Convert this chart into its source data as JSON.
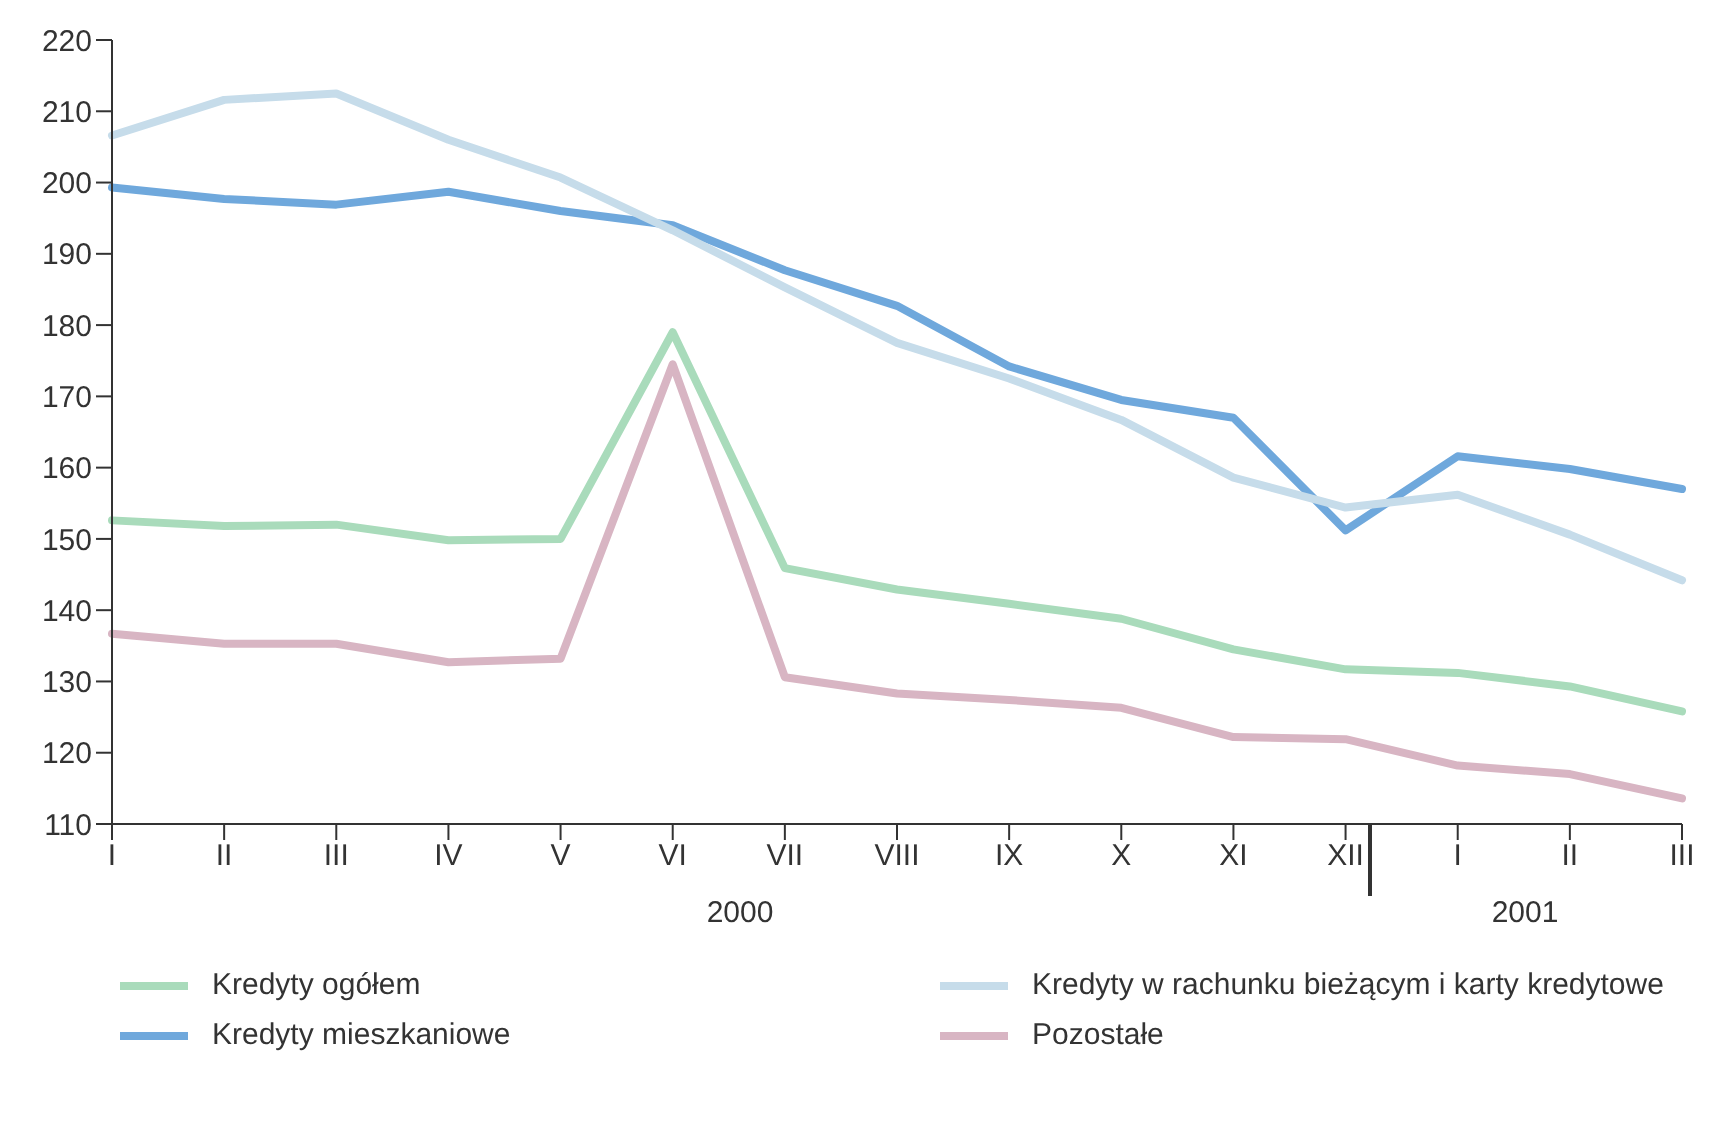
{
  "chart_data": {
    "type": "line",
    "categories": [
      "I",
      "II",
      "III",
      "IV",
      "V",
      "VI",
      "VII",
      "VIII",
      "IX",
      "X",
      "XI",
      "XII",
      "I",
      "II",
      "III"
    ],
    "series": [
      {
        "name": "Kredyty ogółem",
        "color": "#a9dbbb",
        "values": [
          152.6,
          151.8,
          152,
          149.8,
          150,
          179,
          145.9,
          142.9,
          140.9,
          138.8,
          134.5,
          131.7,
          131.2,
          129.3,
          125.8
        ]
      },
      {
        "name": "Kredyty mieszkaniowe",
        "color": "#6fa8dc",
        "values": [
          199.3,
          197.7,
          196.9,
          198.7,
          196,
          194,
          187.7,
          182.7,
          174.2,
          169.5,
          167,
          151.2,
          161.6,
          159.8,
          157
        ]
      },
      {
        "name": "Kredyty w rachunku bieżącym i karty kredytowe",
        "color": "#c6dcea",
        "values": [
          206.6,
          211.6,
          212.5,
          206,
          200.7,
          193.3,
          185.3,
          177.5,
          172.5,
          166.7,
          158.6,
          154.4,
          156.2,
          150.6,
          144.2
        ]
      },
      {
        "name": "Pozostałe",
        "color": "#d8b5c3",
        "values": [
          136.7,
          135.3,
          135.3,
          132.7,
          133.2,
          174.5,
          130.6,
          128.3,
          127.4,
          126.3,
          122.2,
          121.9,
          118.2,
          117,
          113.6
        ]
      }
    ],
    "ylim": [
      110,
      220
    ],
    "yticks": [
      110,
      120,
      130,
      140,
      150,
      160,
      170,
      180,
      190,
      200,
      210,
      220
    ],
    "annotations": [
      "2000",
      "2001"
    ],
    "legend": "bottom",
    "marker": "none",
    "line_style": "solid"
  }
}
